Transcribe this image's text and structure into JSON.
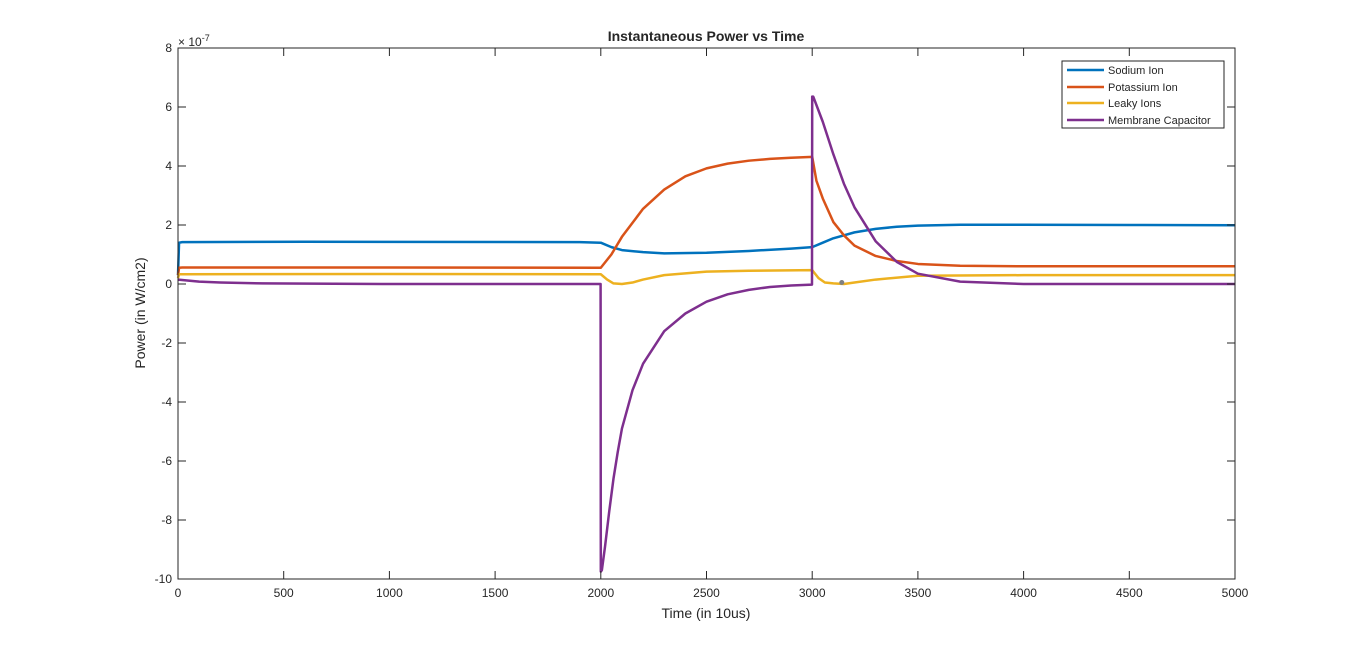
{
  "chart_data": {
    "type": "line",
    "title": "Instantaneous Power vs Time",
    "xlabel": "Time (in 10us)",
    "ylabel": "Power (in W/cm2)",
    "exponent_label": "× 10",
    "exponent_power": "-7",
    "xlim": [
      0,
      5000
    ],
    "ylim": [
      -10,
      8
    ],
    "xticks": [
      "0",
      "500",
      "1000",
      "1500",
      "2000",
      "2500",
      "3000",
      "3500",
      "4000",
      "4500",
      "5000"
    ],
    "yticks": [
      "-10",
      "-8",
      "-6",
      "-4",
      "-2",
      "0",
      "2",
      "4",
      "6",
      "8"
    ],
    "grid": false,
    "legend_position": "top-right",
    "series": [
      {
        "name": "Sodium Ion",
        "color": "#0072BD",
        "x": [
          0,
          5,
          20,
          600,
          1900,
          2000,
          2050,
          2100,
          2200,
          2300,
          2500,
          2700,
          2900,
          3000,
          3050,
          3100,
          3200,
          3300,
          3400,
          3500,
          3700,
          4000,
          4500,
          5000
        ],
        "y": [
          0.3,
          1.4,
          1.42,
          1.43,
          1.42,
          1.4,
          1.25,
          1.15,
          1.08,
          1.04,
          1.06,
          1.12,
          1.2,
          1.25,
          1.4,
          1.55,
          1.75,
          1.87,
          1.94,
          1.98,
          2.01,
          2.01,
          2.0,
          1.99
        ]
      },
      {
        "name": "Potassium Ion",
        "color": "#D95319",
        "x": [
          0,
          5,
          20,
          1000,
          2000,
          2050,
          2100,
          2200,
          2300,
          2400,
          2500,
          2600,
          2700,
          2800,
          2900,
          3000,
          3020,
          3050,
          3100,
          3150,
          3200,
          3300,
          3400,
          3500,
          3700,
          4000,
          4500,
          5000
        ],
        "y": [
          0.3,
          0.55,
          0.56,
          0.56,
          0.55,
          1.0,
          1.6,
          2.55,
          3.2,
          3.65,
          3.92,
          4.08,
          4.18,
          4.24,
          4.28,
          4.31,
          3.5,
          2.9,
          2.1,
          1.65,
          1.3,
          0.95,
          0.78,
          0.68,
          0.62,
          0.6,
          0.6,
          0.6
        ]
      },
      {
        "name": "Leaky Ions",
        "color": "#EDB120",
        "x": [
          0,
          5,
          1000,
          2000,
          2030,
          2060,
          2100,
          2150,
          2200,
          2300,
          2500,
          2700,
          3000,
          3030,
          3060,
          3100,
          3150,
          3200,
          3300,
          3500,
          4000,
          5000
        ],
        "y": [
          0.2,
          0.33,
          0.34,
          0.33,
          0.15,
          0.02,
          0.0,
          0.05,
          0.15,
          0.3,
          0.42,
          0.45,
          0.47,
          0.2,
          0.05,
          0.02,
          0.0,
          0.05,
          0.15,
          0.28,
          0.3,
          0.3
        ]
      },
      {
        "name": "Membrane Capacitor",
        "color": "#7E2F8E",
        "x": [
          0,
          100,
          200,
          400,
          1000,
          1999,
          2000,
          2005,
          2020,
          2040,
          2060,
          2080,
          2100,
          2150,
          2200,
          2300,
          2400,
          2500,
          2600,
          2700,
          2800,
          2900,
          2999,
          3000,
          3005,
          3050,
          3100,
          3150,
          3200,
          3300,
          3400,
          3500,
          3700,
          4000,
          5000
        ],
        "y": [
          0.15,
          0.08,
          0.05,
          0.02,
          0.0,
          0.0,
          -9.75,
          -9.7,
          -8.9,
          -7.7,
          -6.6,
          -5.7,
          -4.9,
          -3.6,
          -2.7,
          -1.6,
          -1.0,
          -0.6,
          -0.35,
          -0.2,
          -0.1,
          -0.05,
          -0.02,
          6.35,
          6.35,
          5.5,
          4.4,
          3.4,
          2.6,
          1.45,
          0.75,
          0.35,
          0.08,
          0.0,
          0.0
        ]
      }
    ],
    "annotations": [
      {
        "type": "marker",
        "x": 3140,
        "y": 0.05,
        "color": "#808080"
      }
    ]
  }
}
